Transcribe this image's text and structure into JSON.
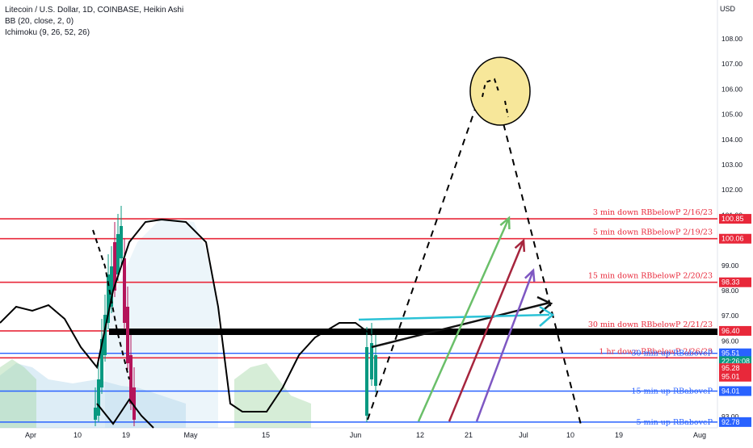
{
  "header": {
    "title": "Litecoin / U.S. Dollar, 1D, COINBASE, Heikin Ashi",
    "indicator1": "BB (20, close, 2, 0)",
    "indicator2": "Ichimoku (9, 26, 52, 26)",
    "currency": "USD"
  },
  "colors": {
    "red": "#e8283a",
    "blue": "#2962ff",
    "green_candle": "#089981",
    "red_candle": "#b4145a",
    "cloud": "#b3d7ea",
    "sun": "#f7e79a"
  },
  "chart_data": {
    "type": "candlestick-annotated",
    "y_ticks": [
      "108.00",
      "107.00",
      "106.00",
      "105.00",
      "104.00",
      "103.00",
      "102.00",
      "101.00",
      "100.00",
      "99.00",
      "98.00",
      "97.00",
      "96.00",
      "95.00",
      "94.00",
      "93.00"
    ],
    "ylim": [
      92.6,
      109.1
    ],
    "x_ticks": [
      "Apr",
      "10",
      "19",
      "May",
      "15",
      "Jun",
      "12",
      "21",
      "Jul",
      "10",
      "19",
      "Aug"
    ],
    "levels": [
      {
        "label": "3 min down RBbelowP 2/16/23",
        "price": 100.85,
        "tag": "100.85",
        "color": "red"
      },
      {
        "label": "5 min down RBbelowP  2/19/23",
        "price": 100.06,
        "tag": "100.06",
        "color": "red"
      },
      {
        "label": "15 min down RBbelowP 2/20/23",
        "price": 98.33,
        "tag": "98.33",
        "color": "red"
      },
      {
        "label": "30 min down RBbelowP 2/21/23",
        "price": 96.4,
        "tag": "96.40",
        "color": "red"
      },
      {
        "label": "1 hr  down RBbelowP 2/26/23",
        "price": 95.33,
        "tag": "95.33",
        "color": "red"
      },
      {
        "label": "30 min up RBaboveP",
        "price": 95.51,
        "tag": "95.51",
        "color": "blue"
      },
      {
        "label": "15 min up RBaboveP",
        "price": 94.01,
        "tag": "94.01",
        "color": "blue"
      },
      {
        "label": "5 min up RBaboveP",
        "price": 92.78,
        "tag": "92.78",
        "color": "blue"
      }
    ],
    "extra_tags": [
      {
        "text": "22:26:08",
        "price": 95.2,
        "color": "#089981"
      },
      {
        "text": "95.28",
        "price": 94.92,
        "color": "#e8283a"
      },
      {
        "text": "95.01",
        "price": 94.58,
        "color": "#e8283a"
      }
    ]
  }
}
